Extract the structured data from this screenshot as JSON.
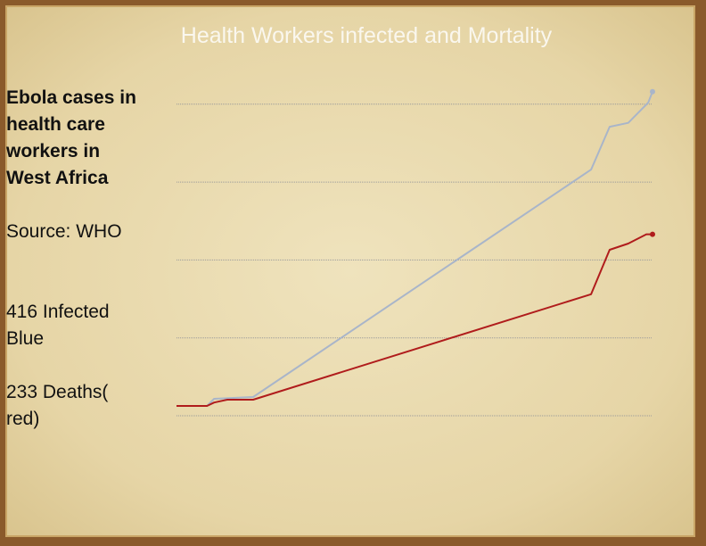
{
  "chart_data": {
    "type": "line",
    "title": "Health Workers infected and Mortality",
    "annotations": [
      "Ebola cases in health care workers in West Africa",
      "Source: WHO",
      "416 Infected Blue",
      "233 Deaths( red)"
    ],
    "xlim": [
      0,
      100
    ],
    "ylim": [
      0,
      420
    ],
    "yticks": [
      0,
      100,
      200,
      300,
      400
    ],
    "grid": true,
    "series": [
      {
        "name": "Infected",
        "color": "#a9b5c9",
        "x": [
          0,
          6.4,
          7.9,
          16.1,
          87.1,
          91,
          94.9,
          99.1,
          100
        ],
        "values": [
          12.6,
          12.6,
          21.8,
          24,
          316,
          371,
          376,
          402,
          416
        ]
      },
      {
        "name": "Deaths",
        "color": "#b01c1c",
        "x": [
          0,
          6.4,
          7.9,
          10.7,
          16.1,
          87.1,
          91,
          94.9,
          98.7,
          100
        ],
        "values": [
          12.6,
          12.6,
          17,
          20.6,
          20.6,
          156,
          213,
          221,
          233,
          233
        ]
      }
    ]
  }
}
